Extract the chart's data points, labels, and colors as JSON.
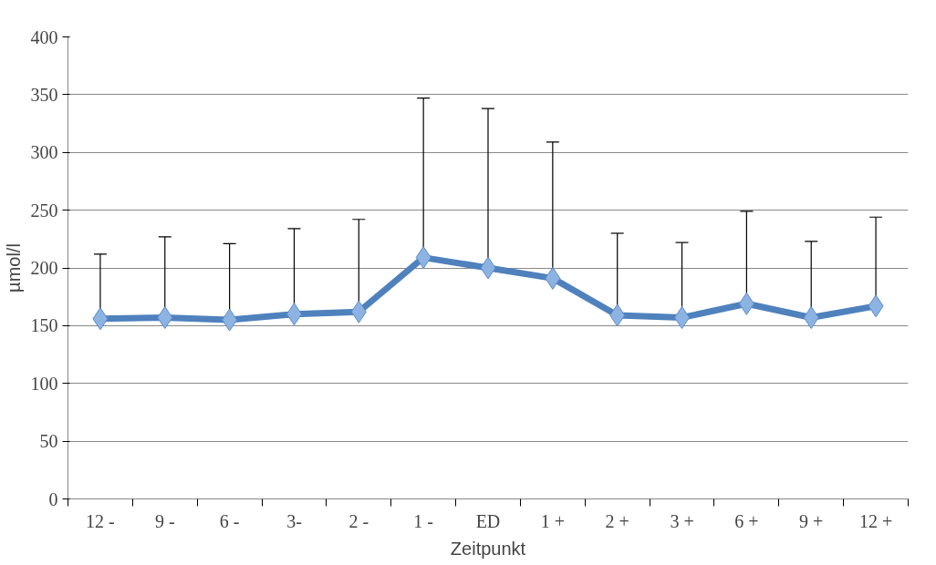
{
  "chart_data": {
    "type": "line",
    "xlabel": "Zeitpunkt",
    "ylabel": "µmol/l",
    "categories": [
      "12 -",
      "9 -",
      "6 -",
      "3-",
      "2 -",
      "1 -",
      "ED",
      "1 +",
      "2 +",
      "3 +",
      "6 +",
      "9 +",
      "12 +"
    ],
    "series": [
      {
        "color": "#4f81bd",
        "values": [
          156,
          157,
          155,
          160,
          162,
          209,
          200,
          191,
          159,
          157,
          169,
          157,
          167
        ],
        "errors": [
          [
            156,
            212
          ],
          [
            157,
            227
          ],
          [
            155,
            221
          ],
          [
            160,
            234
          ],
          [
            162,
            242
          ],
          [
            209,
            347
          ],
          [
            200,
            338
          ],
          [
            191,
            309
          ],
          [
            159,
            230
          ],
          [
            157,
            222
          ],
          [
            169,
            249
          ],
          [
            157,
            223
          ],
          [
            167,
            244
          ]
        ]
      }
    ],
    "ylim": [
      0,
      400
    ],
    "yticks": [
      0,
      50,
      100,
      150,
      200,
      250,
      300,
      350,
      400
    ],
    "grid": "y",
    "marker": "diamond",
    "line_style": "solid"
  }
}
